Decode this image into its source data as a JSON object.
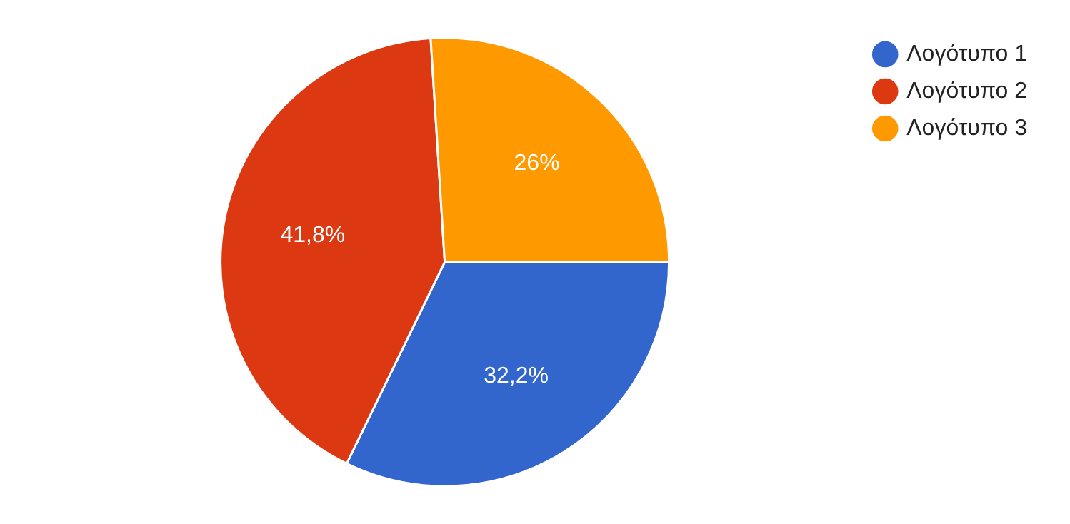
{
  "chart_data": {
    "type": "pie",
    "categories": [
      "Λογότυπο 1",
      "Λογότυπο 2",
      "Λογότυπο 3"
    ],
    "values": [
      32.2,
      41.8,
      26
    ],
    "colors": [
      "#3366cc",
      "#dc3912",
      "#ff9900"
    ],
    "value_labels": [
      "32,2%",
      "41,8%",
      "26%"
    ],
    "legend": "top right"
  }
}
